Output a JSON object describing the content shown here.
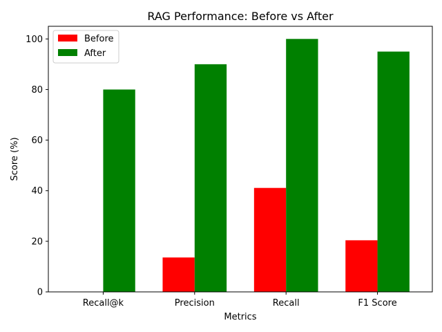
{
  "chart_data": {
    "type": "bar",
    "title": "RAG Performance: Before vs After",
    "xlabel": "Metrics",
    "ylabel": "Score (%)",
    "categories": [
      "Recall@k",
      "Precision",
      "Recall",
      "F1 Score"
    ],
    "series": [
      {
        "name": "Before",
        "values": [
          0,
          13.6,
          41.1,
          20.4
        ],
        "color": "#ff0000"
      },
      {
        "name": "After",
        "values": [
          80,
          90,
          100,
          95
        ],
        "color": "#008000"
      }
    ],
    "ylim": [
      0,
      105
    ],
    "yticks": [
      0,
      20,
      40,
      60,
      80,
      100
    ],
    "grid": false,
    "legend_position": "top-left"
  }
}
